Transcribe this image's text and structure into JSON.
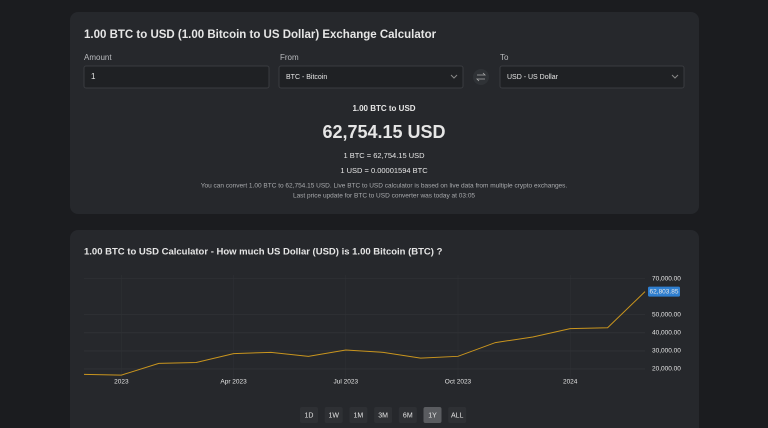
{
  "calculator": {
    "title": "1.00 BTC to USD (1.00 Bitcoin to US Dollar) Exchange Calculator",
    "amount_label": "Amount",
    "amount_value": "1",
    "from_label": "From",
    "from_value": "BTC - Bitcoin",
    "to_label": "To",
    "to_value": "USD - US Dollar",
    "result_caption": "1.00 BTC to USD",
    "result": "62,754.15 USD",
    "rate_forward": "1 BTC = 62,754.15 USD",
    "rate_reverse": "1 USD = 0.00001594 BTC",
    "note_line_1": "You can convert 1.00 BTC to 62,754.15 USD. Live BTC to USD calculator is based on live data from multiple crypto exchanges.",
    "note_line_2": "Last price update for BTC to USD converter was today at 03:05"
  },
  "chart_section": {
    "title": "1.00 BTC to USD Calculator - How much US Dollar (USD) is 1.00 Bitcoin (BTC) ?",
    "ranges": [
      "1D",
      "1W",
      "1M",
      "3M",
      "6M",
      "1Y",
      "ALL"
    ],
    "selected_range": "1Y"
  },
  "chart_data": {
    "type": "line",
    "x": [
      "2022-12",
      "2023-01",
      "2023-02",
      "2023-03",
      "2023-04",
      "2023-05",
      "2023-06",
      "2023-07",
      "2023-08",
      "2023-09",
      "2023-10",
      "2023-11",
      "2023-12",
      "2024-01",
      "2024-02",
      "2024-03"
    ],
    "values": [
      17000,
      16600,
      23100,
      23600,
      28500,
      29200,
      27000,
      30500,
      29200,
      26000,
      27000,
      34600,
      37700,
      42300,
      42800,
      62803.85
    ],
    "value_labels": [
      null,
      null,
      null,
      null,
      null,
      null,
      null,
      null,
      null,
      null,
      null,
      null,
      null,
      null,
      null,
      "62,803.85"
    ],
    "color": "#c9951e",
    "grid": true,
    "ylim": [
      15000,
      72000
    ],
    "yticks": [
      {
        "value": 20000,
        "label": "20,000.00"
      },
      {
        "value": 30000,
        "label": "30,000.00"
      },
      {
        "value": 40000,
        "label": "40,000.00"
      },
      {
        "value": 50000,
        "label": "50,000.00"
      },
      {
        "value": 70000,
        "label": "70,000.00"
      }
    ],
    "xticks": [
      {
        "value": "2023-01",
        "label": "2023"
      },
      {
        "value": "2023-04",
        "label": "Apr 2023"
      },
      {
        "value": "2023-07",
        "label": "Jul 2023"
      },
      {
        "value": "2023-10",
        "label": "Oct 2023"
      },
      {
        "value": "2024-01",
        "label": "2024"
      }
    ]
  }
}
